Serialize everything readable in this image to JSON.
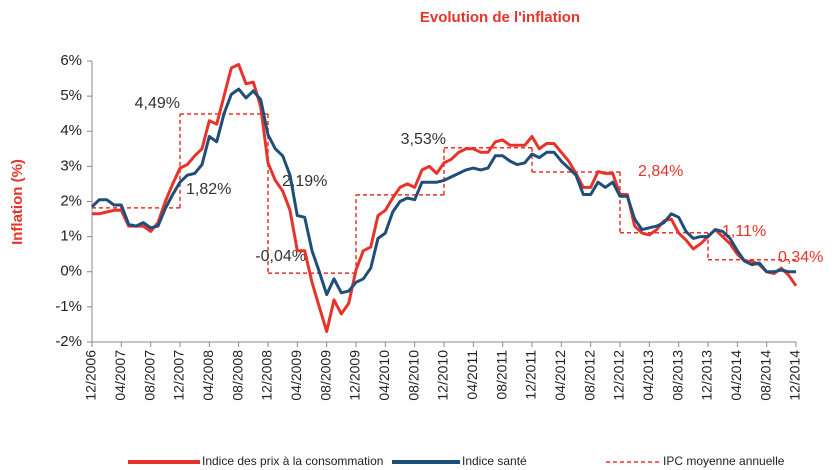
{
  "chart_data": {
    "type": "line",
    "title": "Evolution de l'inflation",
    "y_label": "Inflation (%)",
    "categories": [
      "12/2006",
      null,
      null,
      null,
      "04/2007",
      null,
      null,
      null,
      "08/2007",
      null,
      null,
      null,
      "12/2007",
      null,
      null,
      null,
      "04/2008",
      null,
      null,
      null,
      "08/2008",
      null,
      null,
      null,
      "12/2008",
      null,
      null,
      null,
      "04/2009",
      null,
      null,
      null,
      "08/2009",
      null,
      null,
      null,
      "12/2009",
      null,
      null,
      null,
      "04/2010",
      null,
      null,
      null,
      "08/2010",
      null,
      null,
      null,
      "12/2010",
      null,
      null,
      null,
      "04/2011",
      null,
      null,
      null,
      "08/2011",
      null,
      null,
      null,
      "12/2011",
      null,
      null,
      null,
      "04/2012",
      null,
      null,
      null,
      "08/2012",
      null,
      null,
      null,
      "12/2012",
      null,
      null,
      null,
      "04/2013",
      null,
      null,
      null,
      "08/2013",
      null,
      null,
      null,
      "12/2013",
      null,
      null,
      null,
      "04/2014",
      null,
      null,
      null,
      "08/2014",
      null,
      null,
      null,
      "12/2014"
    ],
    "series": [
      {
        "name": "Indice des prix à la consommation",
        "color": "#e8332a",
        "values": [
          1.65,
          1.65,
          1.7,
          1.75,
          1.75,
          1.3,
          1.3,
          1.3,
          1.15,
          1.4,
          2.0,
          2.5,
          2.95,
          3.05,
          3.3,
          3.5,
          4.3,
          4.2,
          5.0,
          5.8,
          5.9,
          5.35,
          5.4,
          4.7,
          3.1,
          2.6,
          2.3,
          1.75,
          0.6,
          0.6,
          -0.3,
          -1.0,
          -1.7,
          -0.8,
          -1.2,
          -0.9,
          0.05,
          0.6,
          0.7,
          1.6,
          1.75,
          2.1,
          2.4,
          2.5,
          2.4,
          2.9,
          3.0,
          2.8,
          3.1,
          3.2,
          3.4,
          3.5,
          3.5,
          3.4,
          3.4,
          3.7,
          3.75,
          3.6,
          3.6,
          3.6,
          3.85,
          3.5,
          3.65,
          3.65,
          3.4,
          3.15,
          2.8,
          2.4,
          2.4,
          2.85,
          2.8,
          2.8,
          2.2,
          2.2,
          1.3,
          1.1,
          1.05,
          1.2,
          1.45,
          1.5,
          1.1,
          0.9,
          0.65,
          0.8,
          1.0,
          1.2,
          1.0,
          0.8,
          0.5,
          0.3,
          0.3,
          0.2,
          0.0,
          -0.05,
          0.1,
          -0.1,
          -0.4
        ]
      },
      {
        "name": "Indice santé",
        "color": "#1f4e79",
        "values": [
          1.85,
          2.05,
          2.05,
          1.9,
          1.9,
          1.35,
          1.3,
          1.4,
          1.25,
          1.3,
          1.8,
          2.2,
          2.55,
          2.75,
          2.8,
          3.05,
          3.85,
          3.7,
          4.5,
          5.05,
          5.2,
          4.95,
          5.15,
          4.9,
          3.9,
          3.5,
          3.3,
          2.75,
          1.6,
          1.55,
          0.6,
          0.0,
          -0.65,
          -0.2,
          -0.6,
          -0.55,
          -0.3,
          -0.2,
          0.1,
          0.95,
          1.1,
          1.7,
          2.0,
          2.1,
          2.05,
          2.55,
          2.55,
          2.55,
          2.6,
          2.7,
          2.8,
          2.9,
          2.95,
          2.9,
          2.95,
          3.3,
          3.3,
          3.15,
          3.05,
          3.1,
          3.35,
          3.25,
          3.4,
          3.4,
          3.15,
          2.95,
          2.75,
          2.2,
          2.2,
          2.55,
          2.4,
          2.55,
          2.15,
          2.15,
          1.5,
          1.2,
          1.25,
          1.3,
          1.4,
          1.65,
          1.55,
          1.15,
          0.95,
          1.0,
          1.0,
          1.2,
          1.15,
          0.95,
          0.6,
          0.3,
          0.2,
          0.25,
          0.0,
          0.0,
          0.05,
          0.0,
          0.0
        ]
      }
    ],
    "annual": {
      "name": "IPC moyenne annuelle",
      "color": "#e8332a",
      "values": [
        1.82,
        4.49,
        -0.04,
        2.19,
        3.53,
        2.84,
        1.11,
        0.34
      ],
      "value_labels": [
        "1,82%",
        "4,49%",
        "-0,04%",
        "2,19%",
        "3,53%",
        "2,84%",
        "1,11%",
        "0,34%"
      ],
      "value_label_colors": [
        "#333333",
        "#333333",
        "#333333",
        "#333333",
        "#333333",
        "#e8332a",
        "#e8332a",
        "#e8332a"
      ]
    },
    "ylim": [
      -2,
      6
    ],
    "yticks": [
      {
        "value": -2,
        "label": "-2%"
      },
      {
        "value": -1,
        "label": "-1%"
      },
      {
        "value": 0,
        "label": "0%"
      },
      {
        "value": 1,
        "label": "1%"
      },
      {
        "value": 2,
        "label": "2%"
      },
      {
        "value": 3,
        "label": "3%"
      },
      {
        "value": 4,
        "label": "4%"
      },
      {
        "value": 5,
        "label": "5%"
      },
      {
        "value": 6,
        "label": "6%"
      }
    ],
    "legend": "bottom"
  }
}
